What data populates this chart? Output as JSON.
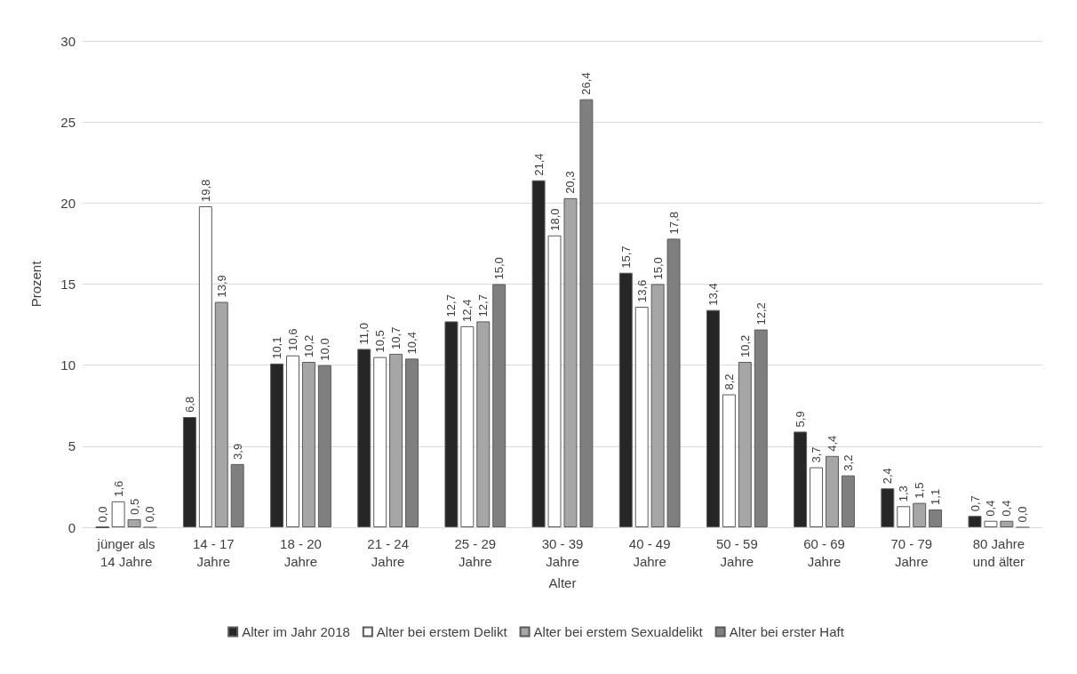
{
  "chart_data": {
    "type": "bar",
    "xlabel": "Alter",
    "ylabel": "Prozent",
    "categories": [
      "jünger als\n14 Jahre",
      "14 - 17\nJahre",
      "18 - 20\nJahre",
      "21 - 24\nJahre",
      "25 - 29\nJahre",
      "30 - 39\nJahre",
      "40 - 49\nJahre",
      "50 - 59\nJahre",
      "60 - 69\nJahre",
      "70 - 79\nJahre",
      "80 Jahre\nund älter"
    ],
    "series": [
      {
        "name": "Alter im Jahr 2018",
        "color": "#262626",
        "values": [
          0.0,
          6.8,
          10.1,
          11.0,
          12.7,
          21.4,
          15.7,
          13.4,
          5.9,
          2.4,
          0.7
        ],
        "value_labels": [
          "0,0",
          "6,8",
          "10,1",
          "11,0",
          "12,7",
          "21,4",
          "15,7",
          "13,4",
          "5,9",
          "2,4",
          "0,7"
        ]
      },
      {
        "name": "Alter bei erstem Delikt",
        "color": "#ffffff",
        "values": [
          1.6,
          19.8,
          10.6,
          10.5,
          12.4,
          18.0,
          13.6,
          8.2,
          3.7,
          1.3,
          0.4
        ],
        "value_labels": [
          "1,6",
          "19,8",
          "10,6",
          "10,5",
          "12,4",
          "18,0",
          "13,6",
          "8,2",
          "3,7",
          "1,3",
          "0,4"
        ]
      },
      {
        "name": "Alter bei erstem Sexualdelikt",
        "color": "#a6a6a6",
        "values": [
          0.5,
          13.9,
          10.2,
          10.7,
          12.7,
          20.3,
          15.0,
          10.2,
          4.4,
          1.5,
          0.4
        ],
        "value_labels": [
          "0,5",
          "13,9",
          "10,2",
          "10,7",
          "12,7",
          "20,3",
          "15,0",
          "10,2",
          "4,4",
          "1,5",
          "0,4"
        ]
      },
      {
        "name": "Alter bei erster Haft",
        "color": "#7f7f7f",
        "values": [
          0.0,
          3.9,
          10.0,
          10.4,
          15.0,
          26.4,
          17.8,
          12.2,
          3.2,
          1.1,
          0.0
        ],
        "value_labels": [
          "0,0",
          "3,9",
          "10,0",
          "10,4",
          "15,0",
          "26,4",
          "17,8",
          "12,2",
          "3,2",
          "1,1",
          "0,0"
        ]
      }
    ],
    "ylim": [
      0,
      30
    ],
    "yticks": [
      0,
      5,
      10,
      15,
      20,
      25,
      30
    ],
    "grid": "y",
    "legend": "bottom"
  }
}
